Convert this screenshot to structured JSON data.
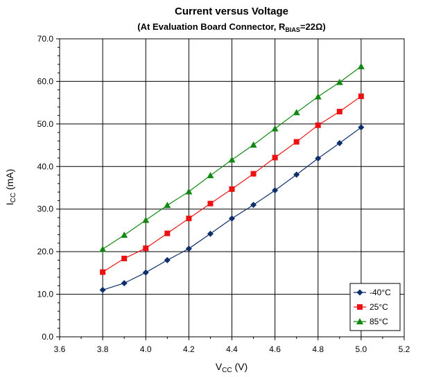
{
  "chart_data": {
    "type": "line",
    "title": "Current versus Voltage",
    "subtitle": {
      "prefix": "(At Evaluation Board Connector, R",
      "subscript": "BIAS",
      "suffix": "=22Ω)"
    },
    "xlabel": {
      "main": "V",
      "subscript": "CC",
      "suffix": " (V)"
    },
    "ylabel": {
      "main": "I",
      "subscript": "CC",
      "suffix": " (mA)"
    },
    "xlim": [
      3.6,
      5.2
    ],
    "ylim": [
      0,
      70
    ],
    "xticks": [
      "3.6",
      "3.8",
      "4.0",
      "4.2",
      "4.4",
      "4.6",
      "4.8",
      "5.0",
      "5.2"
    ],
    "xtick_values": [
      3.6,
      3.8,
      4.0,
      4.2,
      4.4,
      4.6,
      4.8,
      5.0,
      5.2
    ],
    "yticks": [
      "0.0",
      "10.0",
      "20.0",
      "30.0",
      "40.0",
      "50.0",
      "60.0",
      "70.0"
    ],
    "ytick_values": [
      0,
      10,
      20,
      30,
      40,
      50,
      60,
      70
    ],
    "grid": true,
    "legend": "bottom-right",
    "x": [
      3.8,
      3.9,
      4.0,
      4.1,
      4.2,
      4.3,
      4.4,
      4.5,
      4.6,
      4.7,
      4.8,
      4.9,
      5.0
    ],
    "series": [
      {
        "name": "-40°C",
        "color": "#0d2f6b",
        "marker": "diamond",
        "values": [
          11.0,
          12.6,
          15.1,
          18.0,
          20.7,
          24.2,
          27.8,
          31.0,
          34.4,
          38.1,
          41.9,
          45.5,
          49.2
        ]
      },
      {
        "name": "25°C",
        "color": "#ee1111",
        "marker": "square",
        "values": [
          15.2,
          18.4,
          20.8,
          24.3,
          27.8,
          31.3,
          34.7,
          38.3,
          42.1,
          45.8,
          49.7,
          52.9,
          56.5
        ]
      },
      {
        "name": "85°C",
        "color": "#118811",
        "marker": "triangle",
        "values": [
          20.6,
          23.9,
          27.4,
          30.9,
          34.1,
          37.9,
          41.6,
          45.1,
          48.9,
          52.7,
          56.4,
          59.8,
          63.5
        ]
      }
    ]
  }
}
